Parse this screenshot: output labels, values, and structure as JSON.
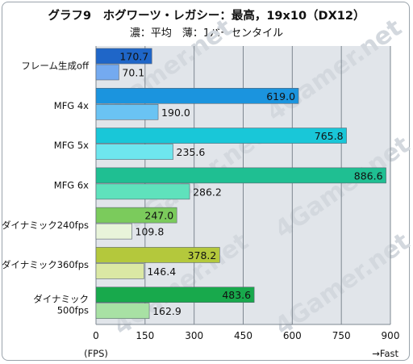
{
  "title": "グラフ9　ホグワーツ・レガシー：最高，19x10（DX12）",
  "subtitle": "濃：平均　薄：1パーセンタイル",
  "colors": {
    "plot_bg": "#e1e5ea",
    "grid": "#7d8790",
    "watermark": "#d3d8de"
  },
  "chart_data": {
    "type": "bar",
    "orientation": "horizontal",
    "categories": [
      [
        "フレーム生成off"
      ],
      [
        "MFG 4x"
      ],
      [
        "MFG 5x"
      ],
      [
        "MFG 6x"
      ],
      [
        "ダイナミック240fps"
      ],
      [
        "ダイナミック360fps"
      ],
      [
        "ダイナミック",
        "500fps"
      ]
    ],
    "series": [
      {
        "name": "平均",
        "values": [
          170.7,
          619.0,
          765.8,
          886.6,
          247.0,
          378.2,
          483.6
        ]
      },
      {
        "name": "1パーセンタイル",
        "values": [
          70.1,
          190.0,
          235.6,
          286.2,
          109.8,
          146.4,
          162.9
        ]
      }
    ],
    "bar_colors": {
      "平均": [
        "#1f66c8",
        "#1b94de",
        "#19c7d8",
        "#1fbf92",
        "#7bcb5c",
        "#b4c83c",
        "#18a94c"
      ],
      "1パーセンタイル": [
        "#74aaf0",
        "#6ac3f3",
        "#6ee6ee",
        "#5fe2bc",
        "#e8f4da",
        "#dbe8a4",
        "#a8e1a4"
      ]
    },
    "xlim": [
      0,
      900
    ],
    "xticks": [
      0,
      150,
      300,
      450,
      600,
      750,
      900
    ],
    "xlabel": "(FPS)",
    "xlabel_right": "→Fast",
    "grid": true,
    "watermark": "4Gamer.net"
  }
}
